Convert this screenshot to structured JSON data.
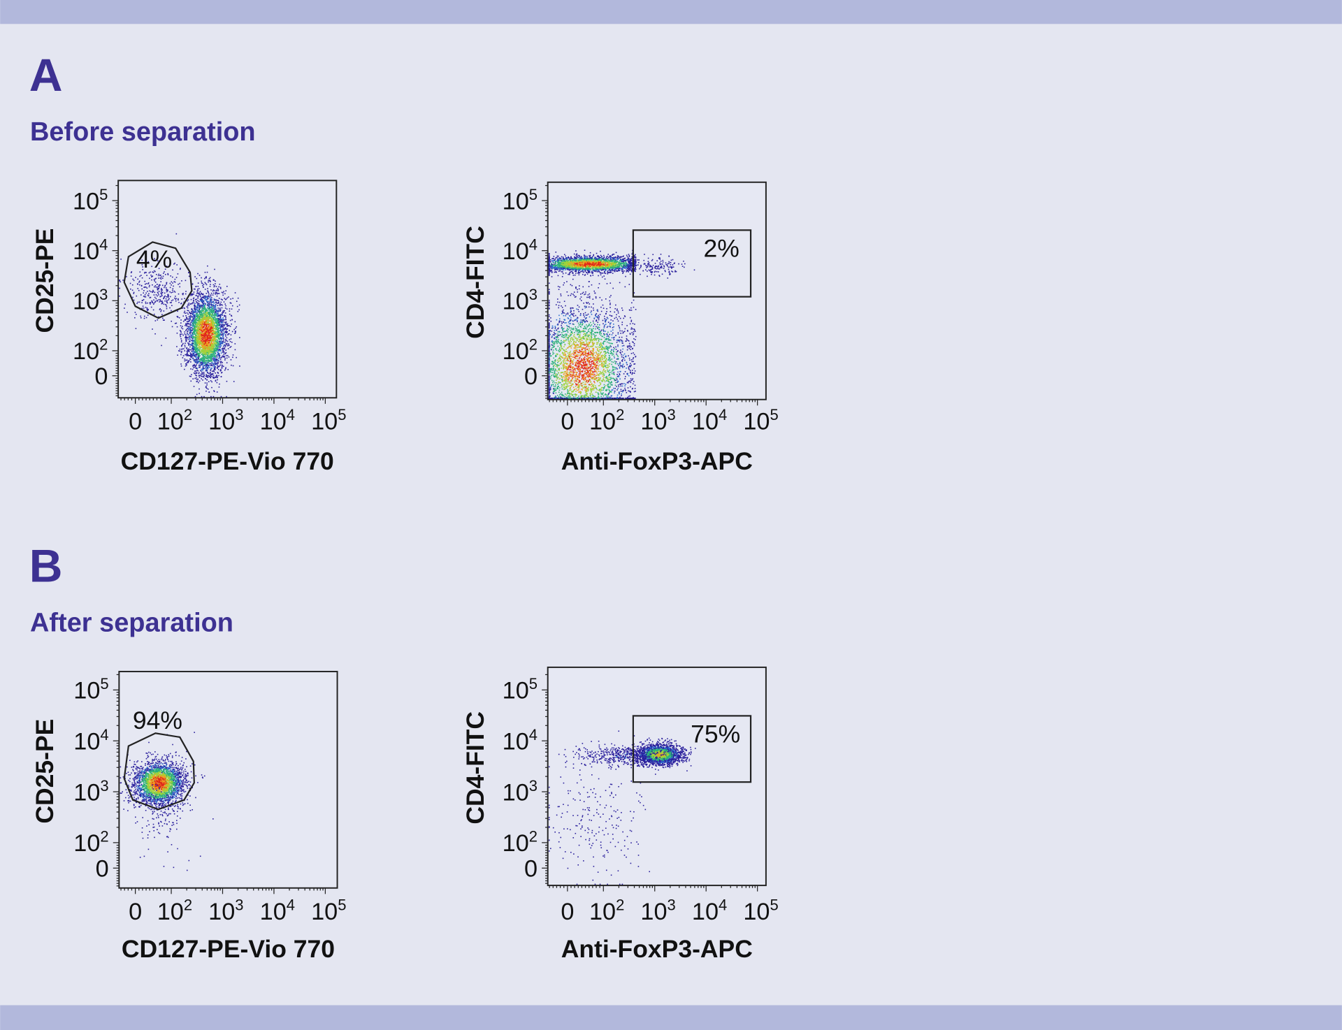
{
  "panels": [
    {
      "letter": "A",
      "subtitle": "Before separation"
    },
    {
      "letter": "B",
      "subtitle": "After separation"
    }
  ],
  "colors": {
    "heading": "#3d3192",
    "band": "#b2b8dc",
    "background": "#e4e6f1",
    "density_scale": [
      "#2a1f9c",
      "#2d6fcf",
      "#2bb07a",
      "#9fd23a",
      "#f0a020",
      "#e0261a"
    ]
  },
  "chart_data": [
    {
      "type": "scatter",
      "panel": "A",
      "xlabel": "CD127-PE-Vio 770",
      "ylabel": "CD25-PE",
      "x_scale": "biexponential",
      "y_scale": "biexponential",
      "x_ticks": [
        "0",
        "10^2",
        "10^3",
        "10^4",
        "10^5"
      ],
      "y_ticks": [
        "0",
        "10^2",
        "10^3",
        "10^4",
        "10^5"
      ],
      "populations": [
        {
          "x_center": 470,
          "y_center": 220,
          "x_sd_decades": 0.2,
          "y_sd_decades": 0.42,
          "count": 3600
        },
        {
          "x_center": 60,
          "y_center": 1500,
          "x_sd_decades": 0.3,
          "y_sd_decades": 0.3,
          "count": 350
        }
      ],
      "gate": {
        "shape": "polygon",
        "label": "4%",
        "vertices": [
          [
            -19,
            7600
          ],
          [
            48,
            14800
          ],
          [
            121,
            11200
          ],
          [
            233,
            3700
          ],
          [
            251,
            1580
          ],
          [
            158,
            716
          ],
          [
            64,
            450
          ],
          [
            0,
            775
          ],
          [
            -31,
            2340
          ]
        ]
      }
    },
    {
      "type": "scatter",
      "panel": "A",
      "xlabel": "Anti-FoxP3-APC",
      "ylabel": "CD4-FITC",
      "x_scale": "biexponential",
      "y_scale": "biexponential",
      "x_ticks": [
        "0",
        "10^2",
        "10^3",
        "10^4",
        "10^5"
      ],
      "y_ticks": [
        "0",
        "10^2",
        "10^3",
        "10^4",
        "10^5"
      ],
      "populations": [
        {
          "x_center": 60,
          "y_center": 5500,
          "x_sd_decades": 0.55,
          "y_sd_decades": 0.08,
          "x_max": 420,
          "count": 2600
        },
        {
          "x_center": 1200,
          "y_center": 5000,
          "x_sd_decades": 0.25,
          "y_sd_decades": 0.1,
          "count": 150
        },
        {
          "x_center": 40,
          "y_center": 40,
          "x_sd_decades": 0.5,
          "y_sd_decades": 0.65,
          "x_max": 420,
          "y_max": 2500,
          "count": 3400
        }
      ],
      "gate": {
        "shape": "rectangle",
        "label": "2%",
        "x_range": [
          380,
          74000
        ],
        "y_range": [
          1200,
          25700
        ]
      }
    },
    {
      "type": "scatter",
      "panel": "B",
      "xlabel": "CD127-PE-Vio 770",
      "ylabel": "CD25-PE",
      "x_scale": "biexponential",
      "y_scale": "biexponential",
      "x_ticks": [
        "0",
        "10^2",
        "10^3",
        "10^4",
        "10^5"
      ],
      "y_ticks": [
        "0",
        "10^2",
        "10^3",
        "10^4",
        "10^5"
      ],
      "populations": [
        {
          "x_center": 64,
          "y_center": 1500,
          "x_sd_decades": 0.25,
          "y_sd_decades": 0.22,
          "count": 2600
        },
        {
          "x_center": 70,
          "y_center": 300,
          "x_sd_decades": 0.3,
          "y_sd_decades": 0.4,
          "count": 120
        }
      ],
      "gate": {
        "shape": "polygon",
        "label": "94%",
        "vertices": [
          [
            -19,
            7900
          ],
          [
            56,
            14100
          ],
          [
            147,
            11800
          ],
          [
            270,
            3950
          ],
          [
            280,
            1500
          ],
          [
            178,
            690
          ],
          [
            64,
            450
          ],
          [
            -7,
            690
          ],
          [
            -31,
            1820
          ]
        ]
      }
    },
    {
      "type": "scatter",
      "panel": "B",
      "xlabel": "Anti-FoxP3-APC",
      "ylabel": "CD4-FITC",
      "x_scale": "biexponential",
      "y_scale": "biexponential",
      "x_ticks": [
        "0",
        "10^2",
        "10^3",
        "10^4",
        "10^5"
      ],
      "y_ticks": [
        "0",
        "10^2",
        "10^3",
        "10^4",
        "10^5"
      ],
      "populations": [
        {
          "x_center": 1200,
          "y_center": 5500,
          "x_sd_decades": 0.22,
          "y_sd_decades": 0.1,
          "count": 2000
        },
        {
          "x_center": 250,
          "y_center": 5200,
          "x_sd_decades": 0.5,
          "y_sd_decades": 0.1,
          "count": 500
        },
        {
          "x_center": 80,
          "y_center": 300,
          "x_sd_decades": 0.45,
          "y_sd_decades": 0.6,
          "x_max": 800,
          "count": 220
        }
      ],
      "gate": {
        "shape": "rectangle",
        "label": "75%",
        "x_range": [
          380,
          74000
        ],
        "y_range": [
          1550,
          31000
        ]
      }
    }
  ]
}
